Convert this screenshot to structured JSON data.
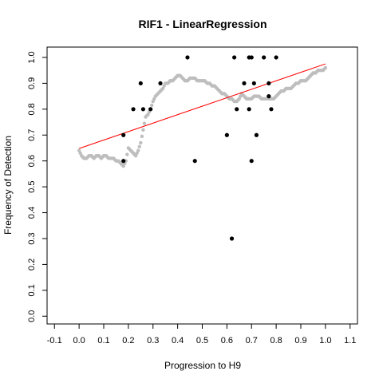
{
  "chart_data": {
    "type": "scatter",
    "title": "RIF1 - LinearRegression",
    "xlabel": "Progression to H9",
    "ylabel": "Frequency of Detection",
    "xlim": [
      -0.13,
      1.13
    ],
    "ylim": [
      -0.03,
      1.04
    ],
    "xticks": [
      "-0.1",
      "0.0",
      "0.1",
      "0.2",
      "0.3",
      "0.4",
      "0.5",
      "0.6",
      "0.7",
      "0.8",
      "0.9",
      "1.0",
      "1.1"
    ],
    "yticks": [
      "0.0",
      "0.1",
      "0.2",
      "0.3",
      "0.4",
      "0.5",
      "0.6",
      "0.7",
      "0.8",
      "0.9",
      "1.0"
    ],
    "grid": false,
    "colors": {
      "observed": "#000000",
      "smooth": "#bebebe",
      "fit": "#ff0000"
    },
    "series": [
      {
        "style": "black-points",
        "x": [
          0.18,
          0.18,
          0.22,
          0.25,
          0.26,
          0.29,
          0.33,
          0.44,
          0.47,
          0.6,
          0.62,
          0.63,
          0.64,
          0.67,
          0.69,
          0.69,
          0.7,
          0.7,
          0.71,
          0.72,
          0.75,
          0.77,
          0.77,
          0.78,
          0.8
        ],
        "y": [
          0.7,
          0.6,
          0.8,
          0.9,
          0.8,
          0.8,
          0.9,
          1.0,
          0.6,
          0.7,
          0.3,
          1.0,
          0.8,
          0.9,
          1.0,
          0.8,
          1.0,
          0.6,
          0.9,
          0.7,
          1.0,
          0.9,
          0.85,
          0.8,
          1.0
        ]
      },
      {
        "style": "gray-smooth",
        "x": [
          0.0,
          0.01,
          0.02,
          0.03,
          0.04,
          0.05,
          0.06,
          0.07,
          0.08,
          0.09,
          0.1,
          0.11,
          0.12,
          0.13,
          0.14,
          0.15,
          0.16,
          0.17,
          0.18,
          0.19,
          0.2,
          0.21,
          0.22,
          0.23,
          0.24,
          0.25,
          0.26,
          0.27,
          0.28,
          0.29,
          0.3,
          0.31,
          0.32,
          0.33,
          0.34,
          0.35,
          0.36,
          0.37,
          0.38,
          0.39,
          0.4,
          0.41,
          0.42,
          0.43,
          0.44,
          0.45,
          0.46,
          0.47,
          0.48,
          0.49,
          0.5,
          0.51,
          0.52,
          0.53,
          0.54,
          0.55,
          0.56,
          0.57,
          0.58,
          0.59,
          0.6,
          0.61,
          0.62,
          0.63,
          0.64,
          0.65,
          0.66,
          0.67,
          0.68,
          0.69,
          0.7,
          0.71,
          0.72,
          0.73,
          0.74,
          0.75,
          0.76,
          0.77,
          0.78,
          0.79,
          0.8,
          0.81,
          0.82,
          0.83,
          0.84,
          0.85,
          0.86,
          0.87,
          0.88,
          0.89,
          0.9,
          0.91,
          0.92,
          0.93,
          0.94,
          0.95,
          0.96,
          0.97,
          0.98,
          0.99,
          1.0
        ],
        "y": [
          0.64,
          0.62,
          0.61,
          0.61,
          0.62,
          0.62,
          0.61,
          0.62,
          0.62,
          0.61,
          0.62,
          0.62,
          0.61,
          0.61,
          0.61,
          0.6,
          0.6,
          0.59,
          0.58,
          0.6,
          0.65,
          0.64,
          0.63,
          0.62,
          0.64,
          0.67,
          0.72,
          0.77,
          0.78,
          0.8,
          0.83,
          0.85,
          0.86,
          0.87,
          0.88,
          0.9,
          0.9,
          0.91,
          0.91,
          0.92,
          0.93,
          0.93,
          0.92,
          0.91,
          0.91,
          0.92,
          0.92,
          0.92,
          0.91,
          0.91,
          0.91,
          0.91,
          0.9,
          0.9,
          0.89,
          0.89,
          0.88,
          0.87,
          0.86,
          0.86,
          0.85,
          0.84,
          0.84,
          0.83,
          0.83,
          0.84,
          0.86,
          0.85,
          0.84,
          0.84,
          0.84,
          0.85,
          0.85,
          0.85,
          0.84,
          0.84,
          0.84,
          0.84,
          0.84,
          0.84,
          0.85,
          0.86,
          0.87,
          0.87,
          0.88,
          0.88,
          0.88,
          0.89,
          0.9,
          0.9,
          0.91,
          0.91,
          0.91,
          0.92,
          0.93,
          0.94,
          0.94,
          0.95,
          0.95,
          0.95,
          0.96
        ]
      },
      {
        "style": "red-fit-line",
        "x": [
          0.0,
          1.0
        ],
        "y": [
          0.648,
          0.975
        ]
      }
    ]
  }
}
